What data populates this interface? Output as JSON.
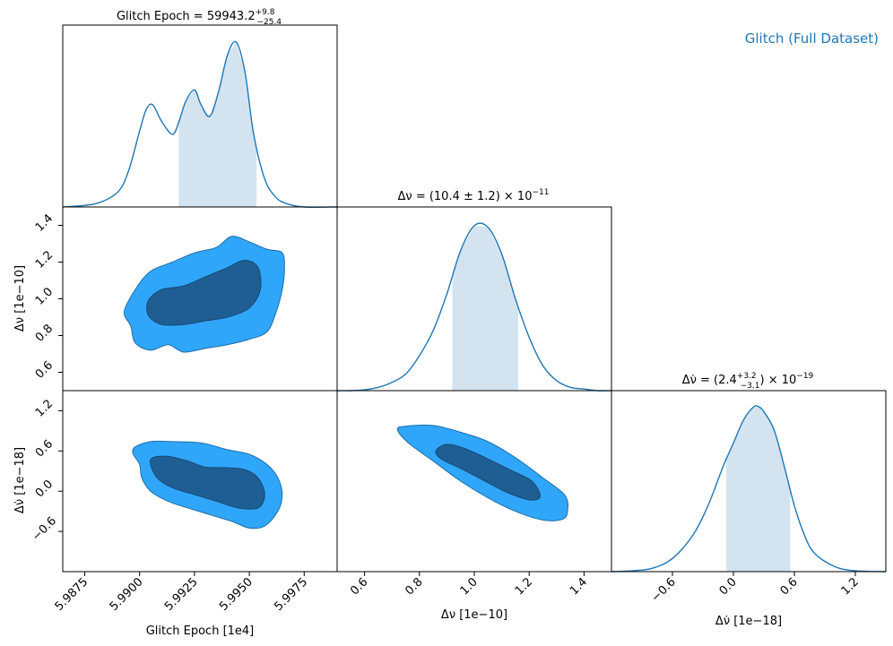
{
  "legend": {
    "label": "Glitch (Full Dataset)",
    "color": "#1f77b4"
  },
  "colors": {
    "line": "#1f77b4",
    "band": "#d3e4f0",
    "contour_outer": "#30a6fb",
    "contour_inner": "#1e5e93",
    "contour_edge": "#1c6fab"
  },
  "titles": {
    "epoch": {
      "prefix": "Glitch Epoch = 59943.2",
      "sup": "+9.8",
      "sub": "−25.4"
    },
    "dnu": {
      "text": "Δν = (10.4 ± 1.2) × 10",
      "exp": "−11"
    },
    "dnudot": {
      "prefix": "Δν̇ = (2.4",
      "sup": "+3.2",
      "sub": "−3.1",
      "suffix": ") × 10",
      "exp": "−19"
    }
  },
  "axis_labels": {
    "epoch_x": "Glitch Epoch [1e4]",
    "dnu_x": "Δν [1e−10]",
    "dnudot_x": "Δν̇ [1e−18]",
    "dnu_y": "Δν [1e−10]",
    "dnudot_y": "Δν̇ [1e−18]"
  },
  "ticks": {
    "epoch": [
      "5.9875",
      "5.9900",
      "5.9925",
      "5.9950",
      "5.9975"
    ],
    "dnu_x": [
      "0.6",
      "0.8",
      "1.0",
      "1.2",
      "1.4"
    ],
    "dnu_y": [
      "0.6",
      "0.8",
      "1.0",
      "1.2",
      "1.4"
    ],
    "dnudot_x": [
      "−0.6",
      "0.0",
      "0.6",
      "1.2"
    ],
    "dnudot_y": [
      "−0.6",
      "0.0",
      "0.6",
      "1.2"
    ]
  },
  "chart_data": {
    "type": "corner",
    "parameters": [
      {
        "name": "Glitch Epoch",
        "unit": "1e4",
        "range": [
          5.9865,
          5.999
        ],
        "credible_interval": [
          5.99178,
          5.99533
        ]
      },
      {
        "name": "Δν",
        "unit": "1e-10",
        "range": [
          0.5,
          1.5
        ],
        "credible_interval": [
          0.92,
          1.16
        ]
      },
      {
        "name": "Δν̇",
        "unit": "1e-18",
        "range": [
          -1.2,
          1.5
        ],
        "credible_interval": [
          -0.07,
          0.56
        ]
      }
    ],
    "marginals": [
      {
        "param": "Glitch Epoch",
        "x": [
          5.9865,
          5.988,
          5.989,
          5.9895,
          5.99,
          5.9903,
          5.9906,
          5.991,
          5.9915,
          5.9918,
          5.9921,
          5.9925,
          5.9928,
          5.9932,
          5.9936,
          5.994,
          5.9944,
          5.9948,
          5.9952,
          5.9957,
          5.9962,
          5.9967,
          5.9975,
          5.999
        ],
        "y": [
          0.0,
          0.02,
          0.09,
          0.22,
          0.46,
          0.59,
          0.62,
          0.52,
          0.44,
          0.52,
          0.64,
          0.71,
          0.62,
          0.55,
          0.7,
          0.92,
          1.0,
          0.82,
          0.44,
          0.17,
          0.06,
          0.02,
          0.0,
          0.0
        ]
      },
      {
        "param": "Δν",
        "x": [
          0.5,
          0.55,
          0.6,
          0.65,
          0.7,
          0.75,
          0.8,
          0.85,
          0.9,
          0.95,
          1.0,
          1.05,
          1.1,
          1.15,
          1.2,
          1.25,
          1.3,
          1.35,
          1.4,
          1.45,
          1.5
        ],
        "y": [
          0.0,
          0.0,
          0.005,
          0.02,
          0.05,
          0.1,
          0.21,
          0.36,
          0.58,
          0.84,
          0.99,
          0.98,
          0.82,
          0.55,
          0.32,
          0.15,
          0.06,
          0.02,
          0.01,
          0.0,
          0.0
        ]
      },
      {
        "param": "Δν̇",
        "x": [
          -1.2,
          -1.0,
          -0.8,
          -0.6,
          -0.4,
          -0.25,
          -0.1,
          0.0,
          0.1,
          0.2,
          0.25,
          0.3,
          0.4,
          0.5,
          0.6,
          0.7,
          0.8,
          1.0,
          1.2,
          1.5
        ],
        "y": [
          0.0,
          0.005,
          0.02,
          0.08,
          0.22,
          0.4,
          0.64,
          0.78,
          0.92,
          1.0,
          1.0,
          0.97,
          0.86,
          0.64,
          0.4,
          0.22,
          0.11,
          0.03,
          0.005,
          0.0
        ]
      }
    ],
    "contours": [
      {
        "x": "Glitch Epoch",
        "y": "Δν",
        "outer": [
          [
            5.9896,
            0.85
          ],
          [
            5.9898,
            0.76
          ],
          [
            5.9905,
            0.72
          ],
          [
            5.9913,
            0.75
          ],
          [
            5.992,
            0.71
          ],
          [
            5.993,
            0.73
          ],
          [
            5.994,
            0.75
          ],
          [
            5.995,
            0.78
          ],
          [
            5.9958,
            0.82
          ],
          [
            5.9962,
            0.92
          ],
          [
            5.9965,
            1.05
          ],
          [
            5.9966,
            1.16
          ],
          [
            5.9965,
            1.25
          ],
          [
            5.9958,
            1.27
          ],
          [
            5.995,
            1.31
          ],
          [
            5.9942,
            1.34
          ],
          [
            5.9935,
            1.28
          ],
          [
            5.9925,
            1.25
          ],
          [
            5.9915,
            1.2
          ],
          [
            5.9905,
            1.15
          ],
          [
            5.9898,
            1.05
          ],
          [
            5.9893,
            0.93
          ]
        ],
        "inner": [
          [
            5.9904,
            0.91
          ],
          [
            5.991,
            0.86
          ],
          [
            5.992,
            0.86
          ],
          [
            5.993,
            0.88
          ],
          [
            5.994,
            0.9
          ],
          [
            5.995,
            0.95
          ],
          [
            5.9955,
            1.05
          ],
          [
            5.9954,
            1.17
          ],
          [
            5.9948,
            1.21
          ],
          [
            5.994,
            1.17
          ],
          [
            5.993,
            1.12
          ],
          [
            5.992,
            1.07
          ],
          [
            5.991,
            1.05
          ],
          [
            5.9904,
            0.99
          ]
        ]
      },
      {
        "x": "Glitch Epoch",
        "y": "Δν̇",
        "outer": [
          [
            5.9897,
            0.56
          ],
          [
            5.99,
            0.4
          ],
          [
            5.9901,
            0.2
          ],
          [
            5.9905,
            0.0
          ],
          [
            5.9913,
            -0.15
          ],
          [
            5.9922,
            -0.25
          ],
          [
            5.9932,
            -0.35
          ],
          [
            5.9942,
            -0.45
          ],
          [
            5.995,
            -0.55
          ],
          [
            5.9957,
            -0.52
          ],
          [
            5.9963,
            -0.3
          ],
          [
            5.9965,
            -0.05
          ],
          [
            5.9963,
            0.2
          ],
          [
            5.9958,
            0.4
          ],
          [
            5.995,
            0.55
          ],
          [
            5.994,
            0.62
          ],
          [
            5.9928,
            0.72
          ],
          [
            5.9915,
            0.74
          ],
          [
            5.9905,
            0.74
          ],
          [
            5.9898,
            0.66
          ]
        ],
        "inner": [
          [
            5.9905,
            0.4
          ],
          [
            5.9908,
            0.2
          ],
          [
            5.9915,
            0.05
          ],
          [
            5.9925,
            -0.05
          ],
          [
            5.9935,
            -0.15
          ],
          [
            5.9945,
            -0.25
          ],
          [
            5.9954,
            -0.25
          ],
          [
            5.9957,
            -0.05
          ],
          [
            5.9954,
            0.2
          ],
          [
            5.9948,
            0.32
          ],
          [
            5.994,
            0.35
          ],
          [
            5.993,
            0.36
          ],
          [
            5.9922,
            0.45
          ],
          [
            5.9913,
            0.52
          ],
          [
            5.9906,
            0.5
          ]
        ]
      },
      {
        "x": "Δν",
        "y": "Δν̇",
        "outer": [
          [
            0.72,
            0.92
          ],
          [
            0.75,
            0.97
          ],
          [
            0.85,
            0.98
          ],
          [
            0.95,
            0.88
          ],
          [
            1.05,
            0.74
          ],
          [
            1.15,
            0.5
          ],
          [
            1.25,
            0.2
          ],
          [
            1.33,
            -0.06
          ],
          [
            1.34,
            -0.3
          ],
          [
            1.32,
            -0.42
          ],
          [
            1.25,
            -0.43
          ],
          [
            1.15,
            -0.3
          ],
          [
            1.05,
            -0.1
          ],
          [
            0.95,
            0.15
          ],
          [
            0.85,
            0.45
          ],
          [
            0.76,
            0.72
          ]
        ],
        "inner": [
          [
            0.86,
            0.6
          ],
          [
            0.9,
            0.7
          ],
          [
            0.97,
            0.63
          ],
          [
            1.05,
            0.48
          ],
          [
            1.13,
            0.32
          ],
          [
            1.21,
            0.15
          ],
          [
            1.24,
            -0.08
          ],
          [
            1.2,
            -0.13
          ],
          [
            1.12,
            -0.02
          ],
          [
            1.03,
            0.17
          ],
          [
            0.95,
            0.34
          ],
          [
            0.88,
            0.48
          ]
        ]
      }
    ]
  }
}
